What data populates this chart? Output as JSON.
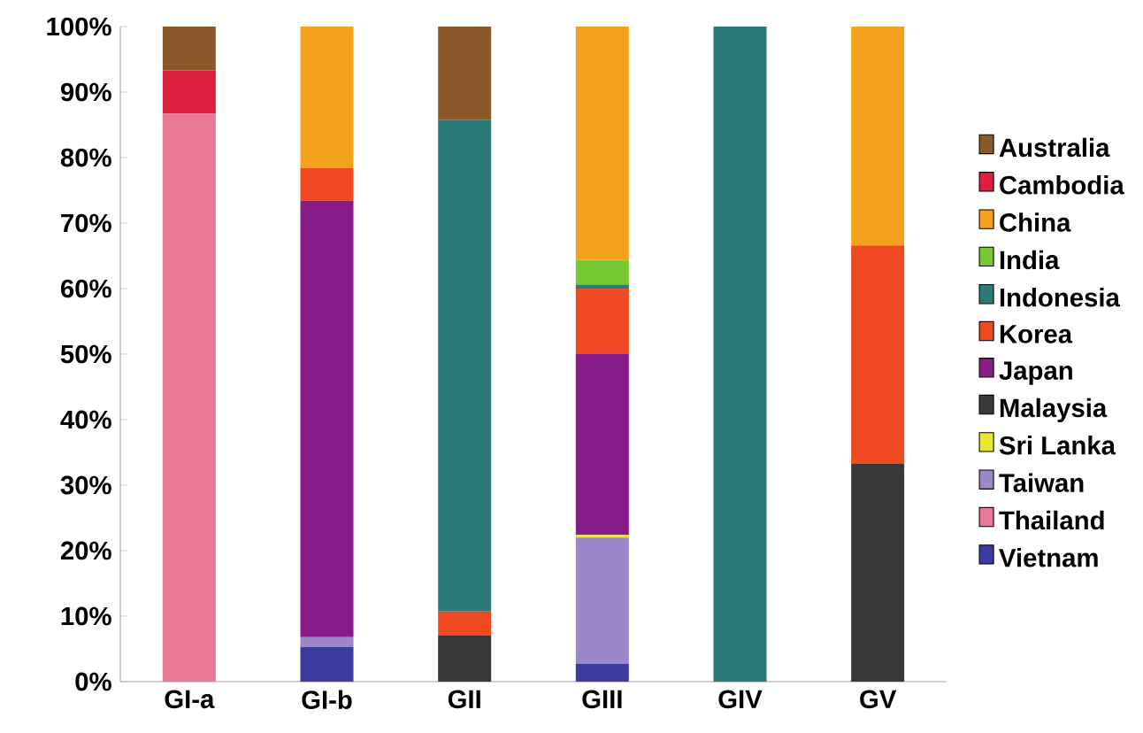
{
  "chart_data": {
    "type": "bar",
    "stacked": true,
    "legend": "right",
    "grid": false,
    "categories": [
      "GI-a",
      "GI-b",
      "GII",
      "GIII",
      "GIV",
      "GV"
    ],
    "ylim": [
      0,
      100
    ],
    "yticks": [
      {
        "value": 0,
        "label": "0%"
      },
      {
        "value": 10,
        "label": "10%"
      },
      {
        "value": 20,
        "label": "20%"
      },
      {
        "value": 30,
        "label": "30%"
      },
      {
        "value": 40,
        "label": "40%"
      },
      {
        "value": 50,
        "label": "50%"
      },
      {
        "value": 60,
        "label": "60%"
      },
      {
        "value": 70,
        "label": "70%"
      },
      {
        "value": 80,
        "label": "80%"
      },
      {
        "value": 90,
        "label": "90%"
      },
      {
        "value": 100,
        "label": "100%"
      }
    ],
    "series": [
      {
        "name": "Vietnam",
        "color": "#3c3ca0",
        "values": [
          null,
          5.3,
          null,
          2.7,
          null,
          null
        ]
      },
      {
        "name": "Thailand",
        "color": "#e97896",
        "values": [
          86.7,
          null,
          null,
          null,
          null,
          null
        ]
      },
      {
        "name": "Taiwan",
        "color": "#9c88c8",
        "values": [
          null,
          1.5,
          null,
          19.3,
          null,
          null
        ]
      },
      {
        "name": "Sri Lanka",
        "color": "#e8e830",
        "values": [
          null,
          null,
          null,
          0.4,
          null,
          null
        ]
      },
      {
        "name": "Malaysia",
        "color": "#383838",
        "values": [
          null,
          null,
          7.1,
          null,
          null,
          33.3
        ]
      },
      {
        "name": "Japan",
        "color": "#861c87",
        "values": [
          null,
          66.6,
          null,
          27.6,
          null,
          null
        ]
      },
      {
        "name": "Korea",
        "color": "#f04a23",
        "values": [
          null,
          5.0,
          3.6,
          10.0,
          null,
          33.3
        ]
      },
      {
        "name": "Indonesia",
        "color": "#2c7b78",
        "values": [
          null,
          null,
          75.0,
          0.6,
          100,
          null
        ]
      },
      {
        "name": "India",
        "color": "#78c832",
        "values": [
          null,
          null,
          null,
          3.8,
          null,
          null
        ]
      },
      {
        "name": "China",
        "color": "#f4a21e",
        "values": [
          null,
          21.6,
          null,
          35.6,
          null,
          33.4
        ]
      },
      {
        "name": "Cambodia",
        "color": "#dc2040",
        "values": [
          6.6,
          null,
          null,
          null,
          null,
          null
        ]
      },
      {
        "name": "Australia",
        "color": "#8b5a2b",
        "values": [
          6.7,
          null,
          14.3,
          null,
          null,
          null
        ]
      }
    ]
  }
}
